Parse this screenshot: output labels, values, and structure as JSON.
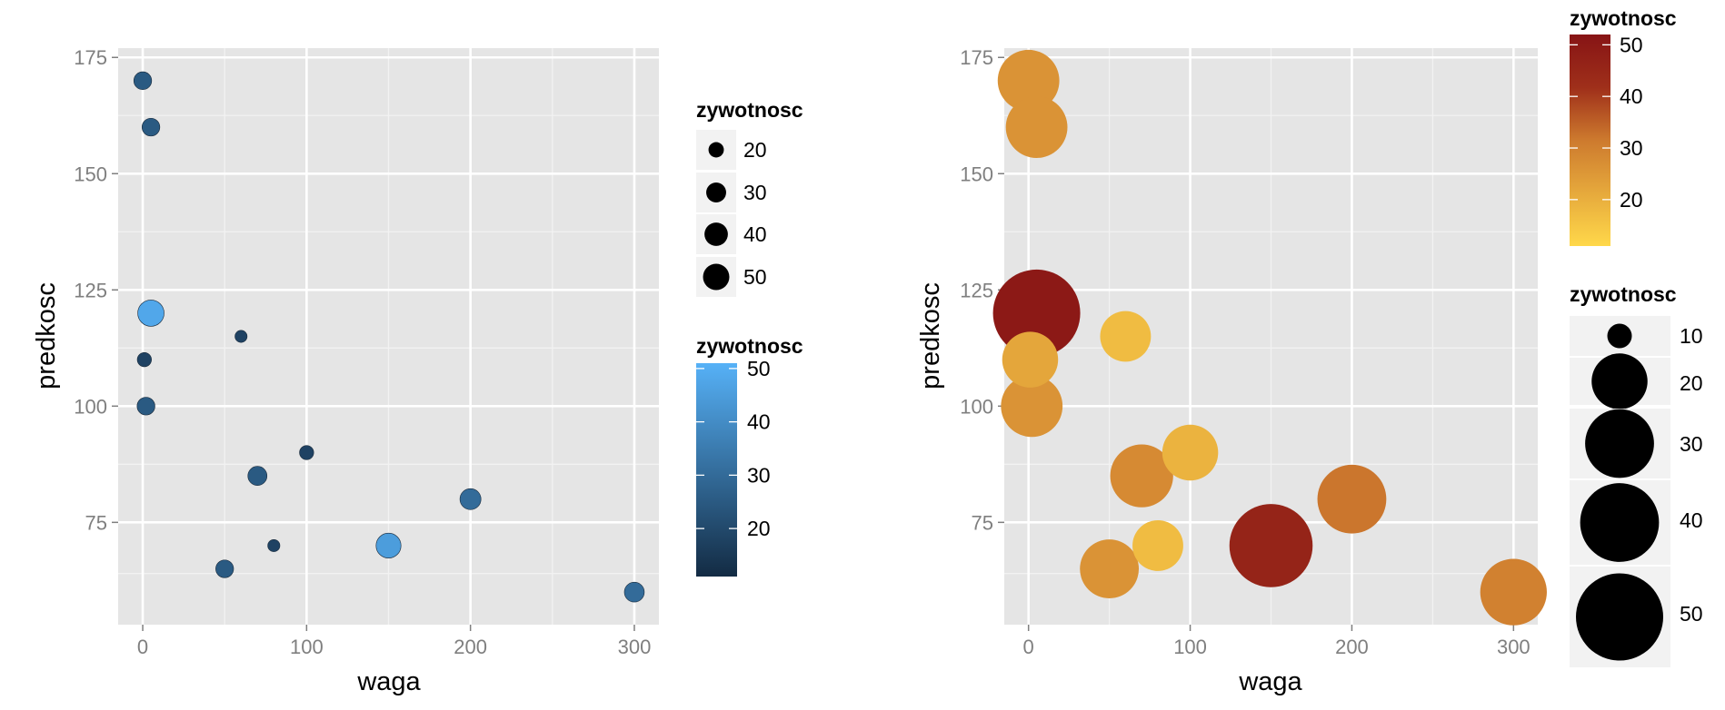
{
  "chart_data": [
    {
      "type": "scatter",
      "xlabel": "waga",
      "ylabel": "predkosc",
      "xlim": [
        -15,
        315
      ],
      "ylim": [
        53,
        177
      ],
      "x_ticks": [
        0,
        100,
        200,
        300
      ],
      "x_tick_labels": [
        "0",
        "100",
        "200",
        "300"
      ],
      "y_ticks": [
        75,
        100,
        125,
        150,
        175
      ],
      "y_tick_labels": [
        "75",
        "100",
        "125",
        "150",
        "175"
      ],
      "grid": true,
      "legend_placement": "right",
      "points": [
        {
          "x": 0,
          "y": 170,
          "size": 25,
          "color": 25
        },
        {
          "x": 5,
          "y": 160,
          "size": 25,
          "color": 25
        },
        {
          "x": 5,
          "y": 120,
          "size": 50,
          "color": 48
        },
        {
          "x": 60,
          "y": 115,
          "size": 15,
          "color": 18
        },
        {
          "x": 1,
          "y": 110,
          "size": 18,
          "color": 18
        },
        {
          "x": 2,
          "y": 100,
          "size": 25,
          "color": 25
        },
        {
          "x": 100,
          "y": 90,
          "size": 18,
          "color": 18
        },
        {
          "x": 70,
          "y": 85,
          "size": 28,
          "color": 25
        },
        {
          "x": 200,
          "y": 80,
          "size": 33,
          "color": 30
        },
        {
          "x": 80,
          "y": 70,
          "size": 15,
          "color": 18
        },
        {
          "x": 150,
          "y": 70,
          "size": 45,
          "color": 45
        },
        {
          "x": 50,
          "y": 65,
          "size": 25,
          "color": 25
        },
        {
          "x": 300,
          "y": 60,
          "size": 30,
          "color": 30
        }
      ],
      "size_legend": {
        "title": "zywotnosc",
        "values": [
          20,
          30,
          40,
          50
        ],
        "labels": [
          "20",
          "30",
          "40",
          "50"
        ]
      },
      "color_legend": {
        "title": "zywotnosc",
        "range": [
          11,
          51
        ],
        "ticks": [
          20,
          30,
          40,
          50
        ],
        "labels": [
          "20",
          "30",
          "40",
          "50"
        ],
        "low": "#132B43",
        "high": "#56B1F7"
      }
    },
    {
      "type": "scatter",
      "xlabel": "waga",
      "ylabel": "predkosc",
      "xlim": [
        -15,
        315
      ],
      "ylim": [
        53,
        177
      ],
      "x_ticks": [
        0,
        100,
        200,
        300
      ],
      "x_tick_labels": [
        "0",
        "100",
        "200",
        "300"
      ],
      "y_ticks": [
        75,
        100,
        125,
        150,
        175
      ],
      "y_tick_labels": [
        "75",
        "100",
        "125",
        "150",
        "175"
      ],
      "grid": true,
      "legend_placement": "right",
      "points": [
        {
          "x": 0,
          "y": 170,
          "size": 24,
          "color": 26
        },
        {
          "x": 5,
          "y": 160,
          "size": 24,
          "color": 26
        },
        {
          "x": 5,
          "y": 120,
          "size": 50,
          "color": 50
        },
        {
          "x": 60,
          "y": 115,
          "size": 17,
          "color": 17
        },
        {
          "x": 1,
          "y": 110,
          "size": 20,
          "color": 22
        },
        {
          "x": 2,
          "y": 100,
          "size": 24,
          "color": 26
        },
        {
          "x": 100,
          "y": 90,
          "size": 20,
          "color": 19
        },
        {
          "x": 70,
          "y": 85,
          "size": 25,
          "color": 28
        },
        {
          "x": 200,
          "y": 80,
          "size": 30,
          "color": 32
        },
        {
          "x": 80,
          "y": 70,
          "size": 17,
          "color": 17
        },
        {
          "x": 150,
          "y": 70,
          "size": 45,
          "color": 46
        },
        {
          "x": 50,
          "y": 65,
          "size": 22,
          "color": 26
        },
        {
          "x": 300,
          "y": 60,
          "size": 28,
          "color": 30
        }
      ],
      "color_legend": {
        "title": "zywotnosc",
        "range": [
          11,
          52
        ],
        "ticks": [
          20,
          30,
          40,
          50
        ],
        "labels": [
          "20",
          "30",
          "40",
          "50"
        ],
        "colors": [
          "#FFD84A",
          "#E6A93C",
          "#CD7A2E",
          "#9F2F1A",
          "#871415"
        ]
      },
      "size_legend": {
        "title": "zywotnosc",
        "values": [
          10,
          20,
          30,
          40,
          50
        ],
        "labels": [
          "10",
          "20",
          "30",
          "40",
          "50"
        ]
      }
    }
  ]
}
